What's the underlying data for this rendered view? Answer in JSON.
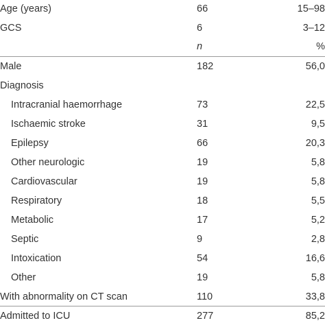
{
  "rows": [
    {
      "label": "Age (years)",
      "n": "66",
      "pct": "15–98"
    },
    {
      "label": "GCS",
      "n": "6",
      "pct": "3–12"
    },
    {
      "label": "",
      "n": "n",
      "pct": "%"
    },
    {
      "label": "Male",
      "n": "182",
      "pct": "56,0"
    },
    {
      "label": "Diagnosis",
      "n": "",
      "pct": ""
    },
    {
      "label": "Intracranial haemorrhage",
      "n": "73",
      "pct": "22,5"
    },
    {
      "label": "Ischaemic stroke",
      "n": "31",
      "pct": "9,5"
    },
    {
      "label": "Epilepsy",
      "n": "66",
      "pct": "20,3"
    },
    {
      "label": "Other neurologic",
      "n": "19",
      "pct": "5,8"
    },
    {
      "label": "Cardiovascular",
      "n": "19",
      "pct": "5,8"
    },
    {
      "label": "Respiratory",
      "n": "18",
      "pct": "5,5"
    },
    {
      "label": "Metabolic",
      "n": "17",
      "pct": "5,2"
    },
    {
      "label": "Septic",
      "n": "9",
      "pct": "2,8"
    },
    {
      "label": "Intoxication",
      "n": "54",
      "pct": "16,6"
    },
    {
      "label": "Other",
      "n": "19",
      "pct": "5,8"
    },
    {
      "label": "With abnormality on CT scan",
      "n": "110",
      "pct": "33,8"
    },
    {
      "label": "Admitted to ICU",
      "n": "277",
      "pct": "85,2"
    }
  ]
}
